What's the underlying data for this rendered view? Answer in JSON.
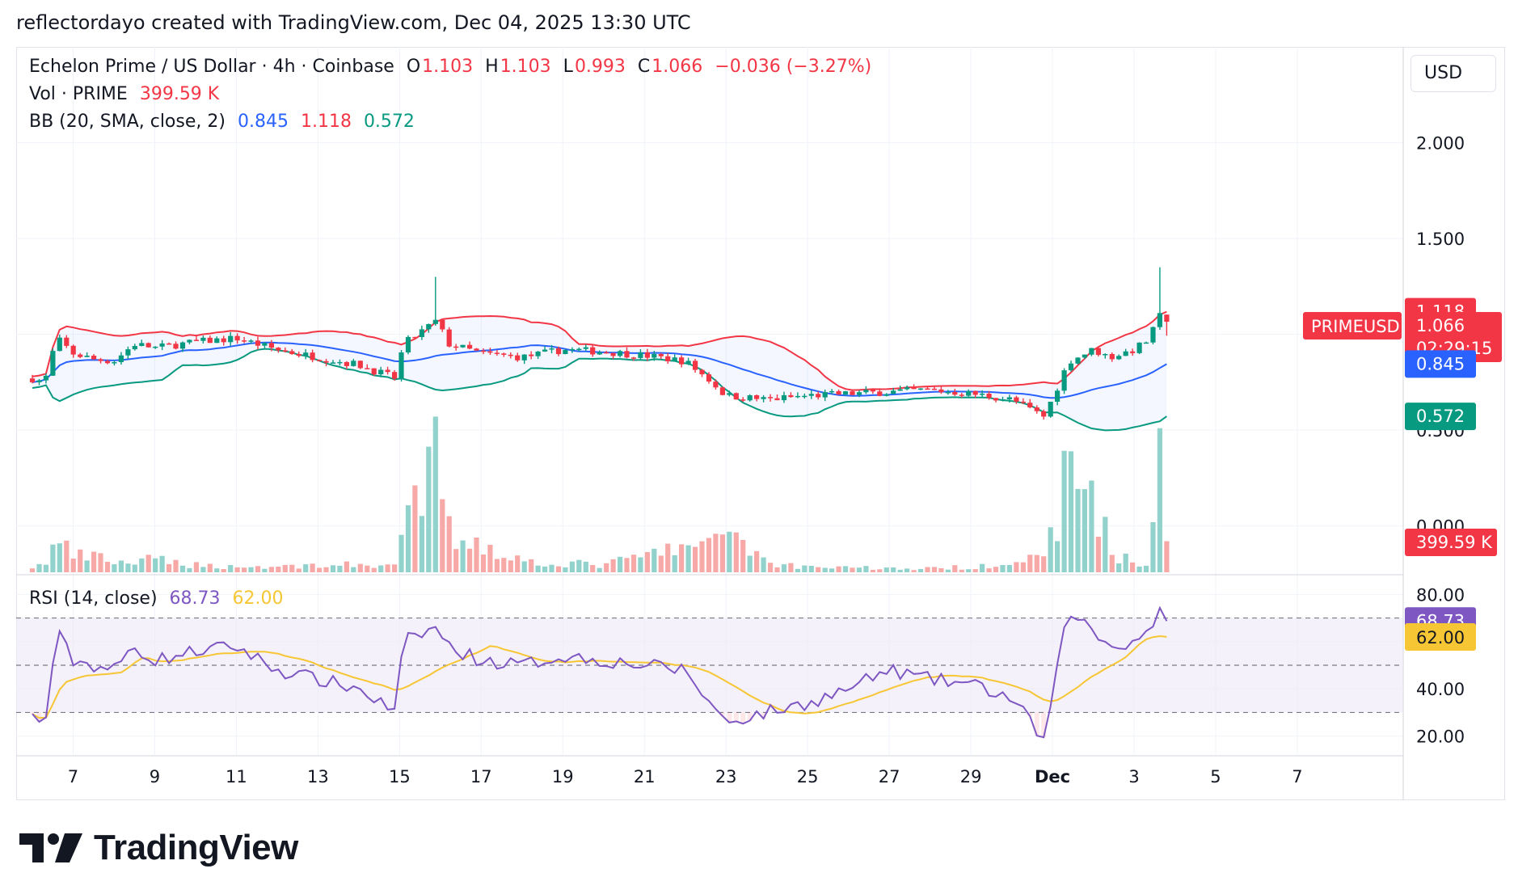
{
  "header": {
    "credit": "reflectordayo created with TradingView.com, Dec 04, 2025 13:30 UTC"
  },
  "legend": {
    "symbol_line": {
      "title": "Echelon Prime / US Dollar · 4h · Coinbase",
      "o_label": "O",
      "o_value": "1.103",
      "h_label": "H",
      "h_value": "1.103",
      "l_label": "L",
      "l_value": "0.993",
      "c_label": "C",
      "c_value": "1.066",
      "change": "−0.036 (−3.27%)"
    },
    "vol_line": {
      "title": "Vol · PRIME",
      "value": "399.59 K"
    },
    "bb_line": {
      "title": "BB (20, SMA, close, 2)",
      "basis": "0.845",
      "upper": "1.118",
      "lower": "0.572"
    },
    "rsi_line": {
      "title": "RSI (14, close)",
      "rsi": "68.73",
      "ma": "62.00"
    }
  },
  "currency_button": "USD",
  "price_axis": {
    "ticks": [
      "2.000",
      "1.500",
      "0.500",
      "0.000"
    ],
    "labels": {
      "upper": "1.118",
      "symbol": "PRIMEUSD",
      "last": "1.066",
      "countdown": "02:29:15",
      "basis": "0.845",
      "lower": "0.572",
      "volume": "399.59 K"
    }
  },
  "rsi_axis": {
    "ticks": [
      "80.00",
      "40.00",
      "20.00"
    ],
    "labels": {
      "rsi": "68.73",
      "ma": "62.00"
    }
  },
  "time_axis": {
    "ticks": [
      "7",
      "9",
      "11",
      "13",
      "15",
      "17",
      "19",
      "21",
      "23",
      "25",
      "27",
      "29",
      "Dec",
      "3",
      "5",
      "7"
    ]
  },
  "colors": {
    "up": "#089981",
    "down": "#f23645",
    "bb_basis": "#2962ff",
    "bb_upper": "#f23645",
    "bb_lower": "#089981",
    "rsi": "#7e57c2",
    "rsi_ma": "#f7c634",
    "vol_up": "#92d2cc",
    "vol_down": "#f7a9a7",
    "rsi_band": "#ede7f6"
  },
  "brand": {
    "logo_text": "TradingView"
  },
  "chart_data": {
    "type": "candlestick",
    "interval": "4h",
    "price_range": [
      -0.25,
      2.5
    ],
    "rsi_range": [
      12,
      88
    ],
    "rsi_levels": [
      70,
      50,
      30
    ],
    "anchors": [
      {
        "t": 0,
        "price": 0.77,
        "vol": 0.3,
        "rsi": 28
      },
      {
        "t": 0.3,
        "price": 0.75,
        "vol": 0.4,
        "rsi": 24
      },
      {
        "t": 0.6,
        "price": 0.98,
        "vol": 1.7,
        "rsi": 64
      },
      {
        "t": 1.0,
        "price": 0.9,
        "vol": 0.9,
        "rsi": 52
      },
      {
        "t": 1.5,
        "price": 0.87,
        "vol": 0.8,
        "rsi": 50
      },
      {
        "t": 2.0,
        "price": 0.86,
        "vol": 0.6,
        "rsi": 48
      },
      {
        "t": 2.5,
        "price": 0.95,
        "vol": 0.5,
        "rsi": 58
      },
      {
        "t": 3.0,
        "price": 0.93,
        "vol": 0.7,
        "rsi": 52
      },
      {
        "t": 4.0,
        "price": 0.96,
        "vol": 0.4,
        "rsi": 56
      },
      {
        "t": 5.0,
        "price": 0.98,
        "vol": 0.3,
        "rsi": 58
      },
      {
        "t": 6.0,
        "price": 0.92,
        "vol": 0.3,
        "rsi": 48
      },
      {
        "t": 7.0,
        "price": 0.88,
        "vol": 0.4,
        "rsi": 44
      },
      {
        "t": 8.0,
        "price": 0.84,
        "vol": 0.4,
        "rsi": 40
      },
      {
        "t": 8.9,
        "price": 0.77,
        "vol": 0.4,
        "rsi": 30
      },
      {
        "t": 9.1,
        "price": 0.95,
        "vol": 1.9,
        "rsi": 60
      },
      {
        "t": 9.9,
        "price": 1.07,
        "vol": 6.3,
        "rsi": 66
      },
      {
        "t": 10.2,
        "price": 0.95,
        "vol": 2.2,
        "rsi": 58
      },
      {
        "t": 11.0,
        "price": 0.9,
        "vol": 1.6,
        "rsi": 52
      },
      {
        "t": 12.0,
        "price": 0.88,
        "vol": 0.6,
        "rsi": 50
      },
      {
        "t": 13.0,
        "price": 0.92,
        "vol": 0.5,
        "rsi": 54
      },
      {
        "t": 14.0,
        "price": 0.91,
        "vol": 0.4,
        "rsi": 52
      },
      {
        "t": 15.0,
        "price": 0.89,
        "vol": 0.9,
        "rsi": 50
      },
      {
        "t": 16.0,
        "price": 0.86,
        "vol": 1.4,
        "rsi": 48
      },
      {
        "t": 16.6,
        "price": 0.76,
        "vol": 1.3,
        "rsi": 34
      },
      {
        "t": 17.0,
        "price": 0.68,
        "vol": 2.8,
        "rsi": 26
      },
      {
        "t": 18.0,
        "price": 0.66,
        "vol": 0.5,
        "rsi": 30
      },
      {
        "t": 19.0,
        "price": 0.68,
        "vol": 0.3,
        "rsi": 34
      },
      {
        "t": 20.0,
        "price": 0.69,
        "vol": 0.3,
        "rsi": 40
      },
      {
        "t": 21.0,
        "price": 0.7,
        "vol": 0.2,
        "rsi": 48
      },
      {
        "t": 22.0,
        "price": 0.71,
        "vol": 0.2,
        "rsi": 44
      },
      {
        "t": 23.0,
        "price": 0.69,
        "vol": 0.3,
        "rsi": 42
      },
      {
        "t": 24.0,
        "price": 0.66,
        "vol": 0.6,
        "rsi": 36
      },
      {
        "t": 24.8,
        "price": 0.57,
        "vol": 0.7,
        "rsi": 18
      },
      {
        "t": 25.4,
        "price": 0.86,
        "vol": 5.6,
        "rsi": 74
      },
      {
        "t": 26.0,
        "price": 0.92,
        "vol": 4.6,
        "rsi": 64
      },
      {
        "t": 26.4,
        "price": 0.88,
        "vol": 1.3,
        "rsi": 58
      },
      {
        "t": 27.0,
        "price": 0.92,
        "vol": 0.4,
        "rsi": 60
      },
      {
        "t": 27.4,
        "price": 0.98,
        "vol": 0.6,
        "rsi": 66
      },
      {
        "t": 27.6,
        "price": 1.1,
        "vol": 6.2,
        "rsi": 74
      },
      {
        "t": 27.8,
        "price": 1.066,
        "vol": 1.7,
        "rsi": 68.73
      }
    ],
    "bollinger": {
      "basis_last": 0.845,
      "upper_last": 1.118,
      "lower_last": 0.572
    },
    "last": {
      "open": 1.103,
      "high": 1.103,
      "low": 0.993,
      "close": 1.066
    }
  }
}
